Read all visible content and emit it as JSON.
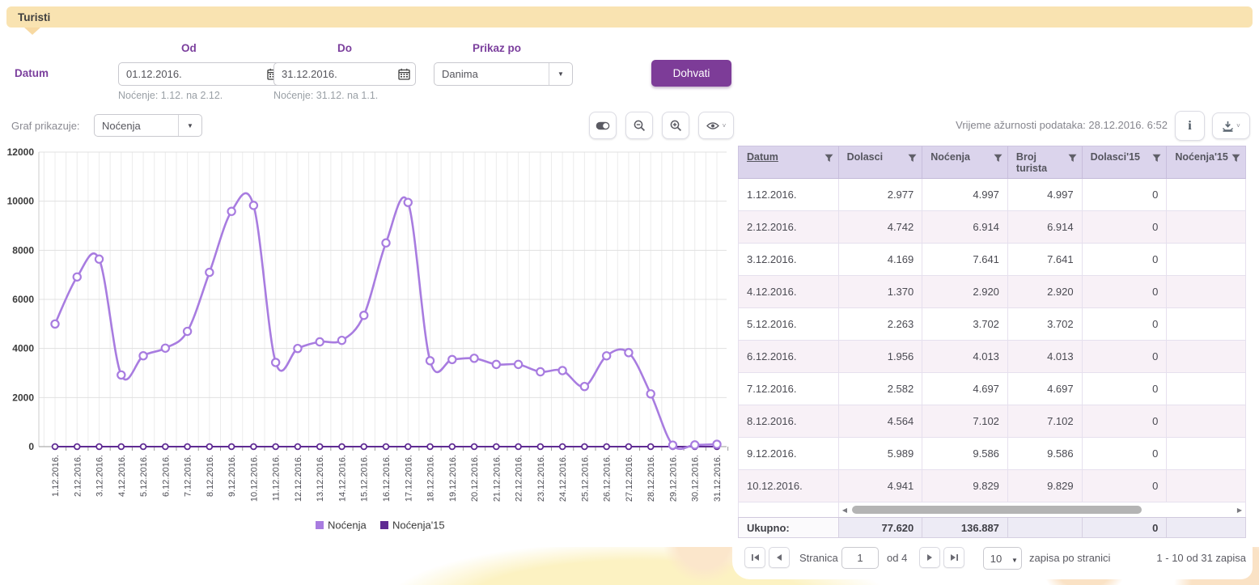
{
  "header": {
    "title": "Turisti"
  },
  "filters": {
    "datum_label": "Datum",
    "od_label": "Od",
    "do_label": "Do",
    "prikaz_label": "Prikaz po",
    "od_value": "01.12.2016.",
    "do_value": "31.12.2016.",
    "prikaz_value": "Danima",
    "od_hint": "Noćenje: 1.12. na 2.12.",
    "do_hint": "Noćenje: 31.12. na 1.1.",
    "fetch_label": "Dohvati"
  },
  "chart_controls": {
    "graf_label": "Graf prikazuje:",
    "graf_value": "Noćenja"
  },
  "panel_header": {
    "updated_text": "Vrijeme ažurnosti podataka: 28.12.2016. 6:52"
  },
  "chart_data": {
    "type": "line",
    "x": [
      "1.12.2016.",
      "2.12.2016.",
      "3.12.2016.",
      "4.12.2016.",
      "5.12.2016.",
      "6.12.2016.",
      "7.12.2016.",
      "8.12.2016.",
      "9.12.2016.",
      "10.12.2016.",
      "11.12.2016.",
      "12.12.2016.",
      "13.12.2016.",
      "14.12.2016.",
      "15.12.2016.",
      "16.12.2016.",
      "17.12.2016.",
      "18.12.2016.",
      "19.12.2016.",
      "20.12.2016.",
      "21.12.2016.",
      "22.12.2016.",
      "23.12.2016.",
      "24.12.2016.",
      "25.12.2016.",
      "26.12.2016.",
      "27.12.2016.",
      "28.12.2016.",
      "29.12.2016.",
      "30.12.2016.",
      "31.12.2016."
    ],
    "series": [
      {
        "name": "Noćenja",
        "color": "#a87ce0",
        "values": [
          4997,
          6914,
          7641,
          2920,
          3702,
          4013,
          4697,
          7102,
          9586,
          9829,
          3430,
          4000,
          4270,
          4330,
          5350,
          8300,
          9950,
          3500,
          3550,
          3600,
          3350,
          3350,
          3050,
          3100,
          2450,
          3700,
          3830,
          2150,
          60,
          70,
          96
        ]
      },
      {
        "name": "Noćenja'15",
        "color": "#5f2b93",
        "values": [
          0,
          0,
          0,
          0,
          0,
          0,
          0,
          0,
          0,
          0,
          0,
          0,
          0,
          0,
          0,
          0,
          0,
          0,
          0,
          0,
          0,
          0,
          0,
          0,
          0,
          0,
          0,
          0,
          0,
          0,
          0
        ]
      }
    ],
    "ylim": [
      0,
      12000
    ],
    "ytick": 2000,
    "grid": true,
    "legend_position": "bottom"
  },
  "table": {
    "columns": [
      {
        "label": "Datum",
        "sorted": true
      },
      {
        "label": "Dolasci",
        "sorted": false
      },
      {
        "label": "Noćenja",
        "sorted": false
      },
      {
        "label": "Broj turista",
        "sorted": false
      },
      {
        "label": "Dolasci'15",
        "sorted": false
      },
      {
        "label": "Noćenja'15",
        "sorted": false
      }
    ],
    "rows": [
      [
        "1.12.2016.",
        "2.977",
        "4.997",
        "4.997",
        "0",
        ""
      ],
      [
        "2.12.2016.",
        "4.742",
        "6.914",
        "6.914",
        "0",
        ""
      ],
      [
        "3.12.2016.",
        "4.169",
        "7.641",
        "7.641",
        "0",
        ""
      ],
      [
        "4.12.2016.",
        "1.370",
        "2.920",
        "2.920",
        "0",
        ""
      ],
      [
        "5.12.2016.",
        "2.263",
        "3.702",
        "3.702",
        "0",
        ""
      ],
      [
        "6.12.2016.",
        "1.956",
        "4.013",
        "4.013",
        "0",
        ""
      ],
      [
        "7.12.2016.",
        "2.582",
        "4.697",
        "4.697",
        "0",
        ""
      ],
      [
        "8.12.2016.",
        "4.564",
        "7.102",
        "7.102",
        "0",
        ""
      ],
      [
        "9.12.2016.",
        "5.989",
        "9.586",
        "9.586",
        "0",
        ""
      ],
      [
        "10.12.2016.",
        "4.941",
        "9.829",
        "9.829",
        "0",
        ""
      ]
    ],
    "footer": {
      "label": "Ukupno:",
      "values": [
        "77.620",
        "136.887",
        "",
        "0",
        ""
      ]
    }
  },
  "pagination": {
    "stranica_label": "Stranica",
    "page_value": "1",
    "of_label": "od 4",
    "page_size": "10",
    "page_size_label": "zapisa po stranici",
    "range_label": "1 - 10 od 31 zapisa"
  },
  "colors": {
    "accent_purple": "#7d3c98",
    "label_purple": "#7b3f9d",
    "series_light": "#a87ce0",
    "series_dark": "#5f2b93",
    "topbar_cream": "#f9e3b1",
    "table_header_bg": "#dbd4ec",
    "row_alt_bg": "#f8f1f7"
  }
}
